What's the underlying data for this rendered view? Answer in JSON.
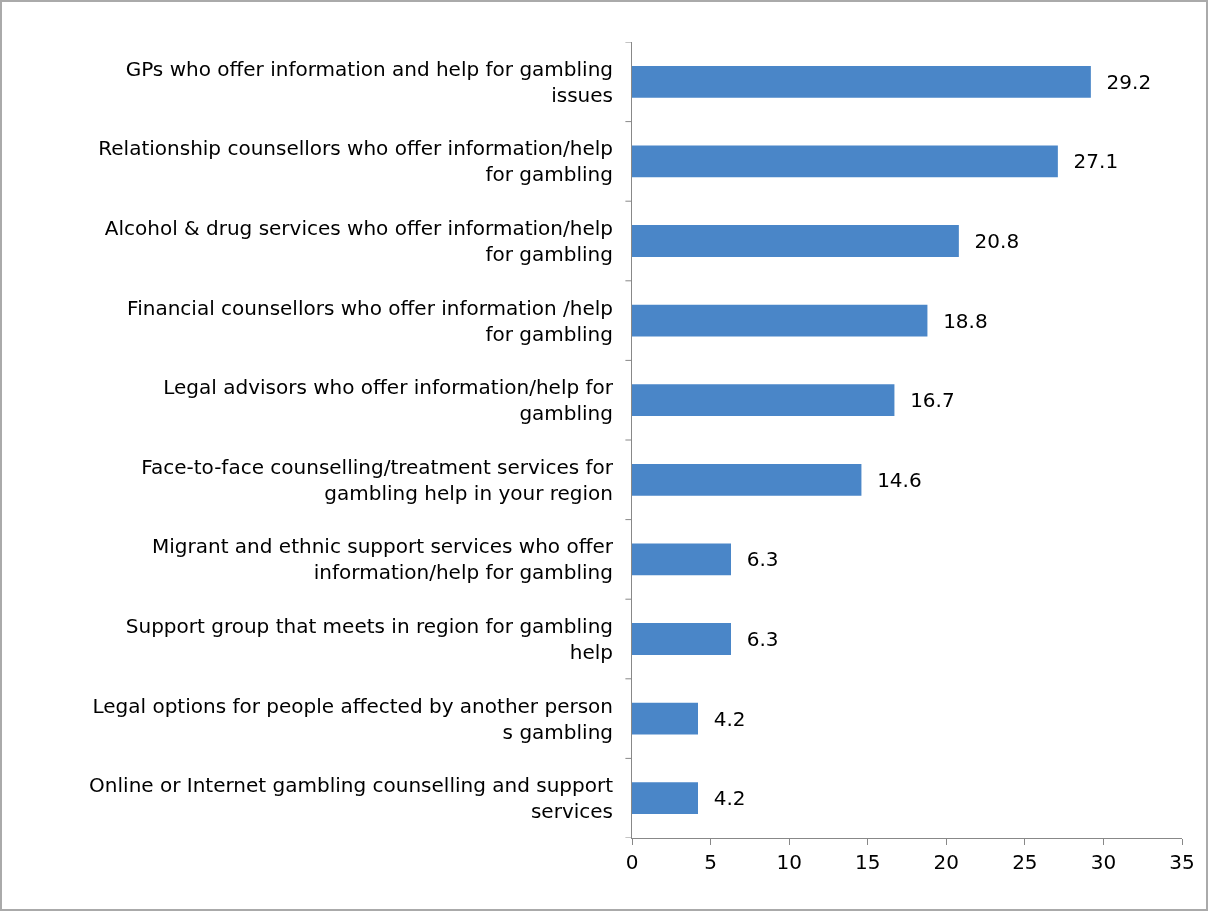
{
  "chart_data": {
    "type": "bar",
    "orientation": "horizontal",
    "categories": [
      "GPs who offer information and help for gambling issues",
      "Relationship counsellors who offer information/help for gambling",
      "Alcohol & drug services who offer information/help for gambling",
      "Financial counsellors who offer information /help for gambling",
      "Legal advisors who offer information/help for gambling",
      "Face-to-face counselling/treatment services for gambling help in your region",
      "Migrant and ethnic support services who offer information/help for gambling",
      "Support group that meets in region for gambling help",
      "Legal options for people affected by another person s gambling",
      "Online or Internet gambling counselling and support services"
    ],
    "values": [
      29.2,
      27.1,
      20.8,
      18.8,
      16.7,
      14.6,
      6.3,
      6.3,
      4.2,
      4.2
    ],
    "color": "#4a86c8",
    "xlim": [
      0,
      35
    ],
    "xticks": [
      0,
      5,
      10,
      15,
      20,
      25,
      30,
      35
    ],
    "grid": false,
    "data_labels": true
  }
}
